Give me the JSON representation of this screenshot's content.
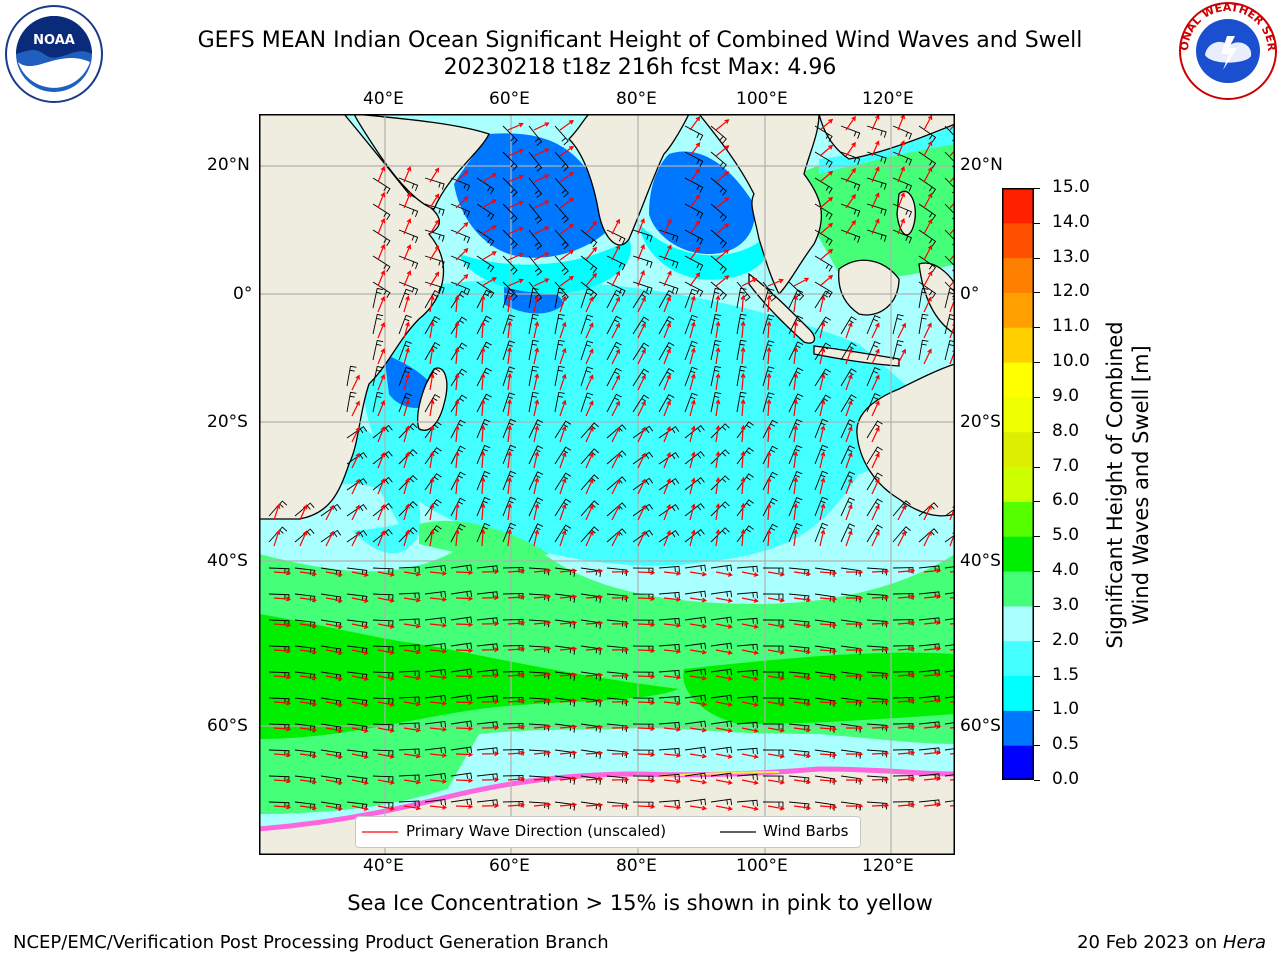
{
  "header": {
    "title_line1": "GEFS MEAN Indian Ocean Significant Height of Combined Wind Waves and Swell",
    "title_line2": "20230218 t18z 216h fcst   Max: 4.96"
  },
  "logos": {
    "left": {
      "icon": "noaa-logo",
      "text": "NOAA"
    },
    "right": {
      "icon": "nws-logo",
      "text": "NATIONAL WEATHER SERVICE"
    }
  },
  "map": {
    "lon_labels": [
      "40°E",
      "60°E",
      "80°E",
      "100°E",
      "120°E"
    ],
    "lat_labels": [
      "20°N",
      "0°",
      "20°S",
      "40°S",
      "60°S"
    ],
    "colors": {
      "land": "#efede0",
      "ice": "#ff66dd",
      "arrow": "#ff0000",
      "barb": "#000000",
      "grid": "#b0b0b0"
    },
    "legend": {
      "wave_label": "Primary Wave Direction (unscaled)",
      "barb_label": "Wind Barbs"
    }
  },
  "colorbar": {
    "label_line1": "Significant Height of Combined",
    "label_line2": "Wind Waves and Swell [m]",
    "ticks": [
      "0.0",
      "0.5",
      "1.0",
      "1.5",
      "2.0",
      "3.0",
      "4.0",
      "5.0",
      "6.0",
      "7.0",
      "8.0",
      "9.0",
      "10.0",
      "11.0",
      "12.0",
      "13.0",
      "14.0",
      "15.0"
    ],
    "colors": [
      "#0000ff",
      "#0077ff",
      "#00ffff",
      "#44ffff",
      "#aaffff",
      "#44ff77",
      "#00ee00",
      "#55ff00",
      "#ccff00",
      "#ddee00",
      "#eeff00",
      "#ffff00",
      "#ffd000",
      "#ffa000",
      "#ff8000",
      "#ff5000",
      "#ff2000"
    ]
  },
  "footer": {
    "note": "Sea Ice Concentration > 15% is shown in pink to yellow",
    "left": "NCEP/EMC/Verification Post Processing Product Generation Branch",
    "right_date": "20 Feb 2023 on ",
    "right_host": "Hera"
  }
}
